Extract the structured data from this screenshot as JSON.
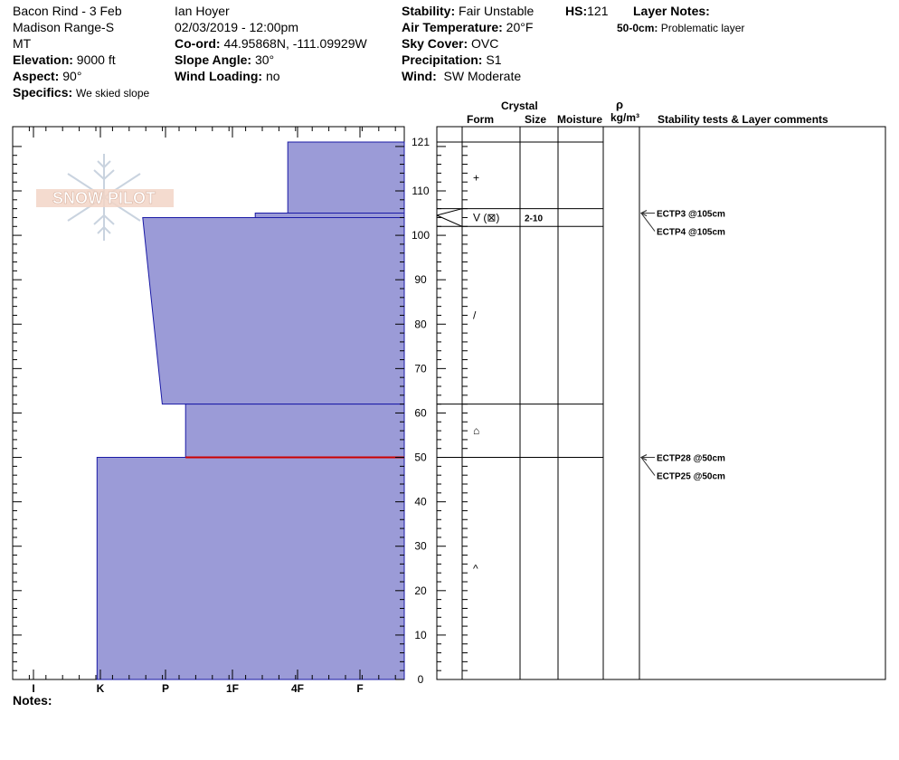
{
  "header": {
    "location_name": "Bacon Rind - 3 Feb",
    "range": "Madison Range-S",
    "state": "MT",
    "elevation_label": "Elevation:",
    "elevation_value": "9000 ft",
    "aspect_label": "Aspect:",
    "aspect_value": "90°",
    "specifics_label": "Specifics:",
    "specifics_value": "We skied slope",
    "observer": "Ian Hoyer",
    "datetime": "02/03/2019 - 12:00pm",
    "coord_label": "Co-ord:",
    "coord_value": "44.95868N, -111.09929W",
    "slope_label": "Slope Angle:",
    "slope_value": "30°",
    "wind_loading_label": "Wind Loading:",
    "wind_loading_value": "no",
    "stability_label": "Stability:",
    "stability_value": "Fair Unstable",
    "air_temp_label": "Air Temperature:",
    "air_temp_value": "20°F",
    "sky_label": "Sky Cover:",
    "sky_value": "OVC",
    "precip_label": "Precipitation:",
    "precip_value": "S1",
    "wind_label": "Wind:",
    "wind_value": "SW Moderate",
    "hs_label": "HS:",
    "hs_value": "121",
    "layer_notes_label": "Layer Notes:",
    "layer_note_range": "50-0cm:",
    "layer_note_text": "Problematic layer"
  },
  "columns": {
    "crystal": "Crystal",
    "form": "Form",
    "size": "Size",
    "moisture": "Moisture",
    "rho": "ρ",
    "density_unit": "kg/m³",
    "stability_comments": "Stability tests & Layer comments"
  },
  "notes_label": "Notes:",
  "logo_text": "SNOW PILOT",
  "colors": {
    "fill": "#9b9bd7",
    "edge": "#1a1aa6",
    "weak_layer": "#cc0000"
  },
  "chart_data": {
    "type": "bar",
    "orientation": "horizontal",
    "y_axis": {
      "min": 0,
      "max": 121,
      "ticks": [
        0,
        10,
        20,
        30,
        40,
        50,
        60,
        70,
        80,
        90,
        100,
        110,
        121
      ]
    },
    "hardness_scale": [
      "I",
      "K",
      "P",
      "1F",
      "4F",
      "F"
    ],
    "hardness_layers": [
      {
        "top": 121,
        "bottom": 105,
        "hardness_top": 3.85,
        "hardness_bottom": 3.85
      },
      {
        "top": 105,
        "bottom": 104,
        "hardness_top": 3.35,
        "hardness_bottom": 3.35
      },
      {
        "top": 104,
        "bottom": 62,
        "hardness_top": 1.65,
        "hardness_bottom": 1.95
      },
      {
        "top": 62,
        "bottom": 50,
        "hardness_top": 2.3,
        "hardness_bottom": 2.3
      },
      {
        "top": 50,
        "bottom": 0,
        "hardness_top": 0.95,
        "hardness_bottom": 0.95
      }
    ],
    "weak_layer_depth": 50,
    "layer_boundaries": [
      121,
      106,
      102,
      62,
      50
    ],
    "crystal_forms": [
      {
        "depth": 113,
        "symbol": "+"
      },
      {
        "depth": 104,
        "symbol": "V (⊠)",
        "size": "2-10"
      },
      {
        "depth": 82,
        "symbol": "/"
      },
      {
        "depth": 56,
        "symbol": "⌂"
      },
      {
        "depth": 25,
        "symbol": "^"
      }
    ],
    "stability_tests": [
      {
        "depth": 105,
        "label": "ECTP3 @105cm"
      },
      {
        "depth": 105,
        "label": "ECTP4 @105cm"
      },
      {
        "depth": 50,
        "label": "ECTP28 @50cm"
      },
      {
        "depth": 50,
        "label": "ECTP25 @50cm"
      }
    ]
  }
}
